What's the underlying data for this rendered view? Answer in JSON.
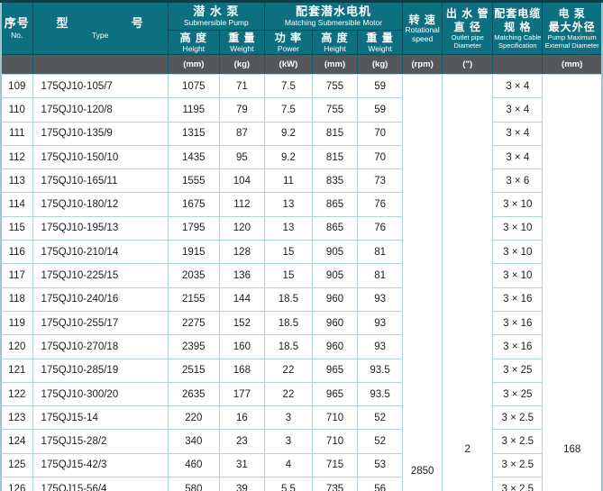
{
  "colors": {
    "header_bg": "#0d7080",
    "units_bg": "#54585b",
    "header_border": "#094c58",
    "body_border": "#b0d4d9",
    "text": "#1d1d1d"
  },
  "table": {
    "header": {
      "no": {
        "zh": "序号",
        "en": "No."
      },
      "type": {
        "zh": "型 号",
        "en": "Type"
      },
      "pump_group": {
        "zh": "潜 水 泵",
        "en": "Submersible Pump"
      },
      "motor_group": {
        "zh": "配套潜水电机",
        "en": "Matching Submersible Motor"
      },
      "pump_height": {
        "zh": "高 度",
        "en": "Height"
      },
      "pump_weight": {
        "zh": "重 量",
        "en": "Weight"
      },
      "power": {
        "zh": "功 率",
        "en": "Power"
      },
      "motor_height": {
        "zh": "高 度",
        "en": "Height"
      },
      "motor_weight": {
        "zh": "重 量",
        "en": "Weight"
      },
      "speed": {
        "zh": "转 速",
        "en": "Rotational speed"
      },
      "outlet": {
        "zh1": "出 水 管",
        "zh2": "直 径",
        "en": "Outlet pipe Diameter"
      },
      "cable": {
        "zh1": "配套电缆",
        "zh2": "规 格",
        "en": "Matching Cable Specification"
      },
      "maxdia": {
        "zh1": "电 泵",
        "zh2": "最大外径",
        "en": "Pump Maximum External Diameter"
      }
    },
    "units": {
      "pump_height": "(mm)",
      "pump_weight": "(kg)",
      "power": "(kW)",
      "motor_height": "(mm)",
      "motor_weight": "(kg)",
      "speed": "(rpm)",
      "outlet": "(\")",
      "maxdia": "(mm)"
    },
    "merged": {
      "speed": "2850",
      "outlet": "2",
      "maxdia": "168"
    },
    "rows": [
      {
        "no": "109",
        "type": "175QJ10-105/7",
        "pump_h": "1075",
        "pump_w": "71",
        "power": "7.5",
        "motor_h": "755",
        "motor_w": "59",
        "cable": "3 × 4"
      },
      {
        "no": "110",
        "type": "175QJ10-120/8",
        "pump_h": "1195",
        "pump_w": "79",
        "power": "7.5",
        "motor_h": "755",
        "motor_w": "59",
        "cable": "3 × 4"
      },
      {
        "no": "111",
        "type": "175QJ10-135/9",
        "pump_h": "1315",
        "pump_w": "87",
        "power": "9.2",
        "motor_h": "815",
        "motor_w": "70",
        "cable": "3 × 4"
      },
      {
        "no": "112",
        "type": "175QJ10-150/10",
        "pump_h": "1435",
        "pump_w": "95",
        "power": "9.2",
        "motor_h": "815",
        "motor_w": "70",
        "cable": "3 × 4"
      },
      {
        "no": "113",
        "type": "175QJ10-165/11",
        "pump_h": "1555",
        "pump_w": "104",
        "power": "11",
        "motor_h": "835",
        "motor_w": "73",
        "cable": "3 × 6"
      },
      {
        "no": "114",
        "type": "175QJ10-180/12",
        "pump_h": "1675",
        "pump_w": "112",
        "power": "13",
        "motor_h": "865",
        "motor_w": "76",
        "cable": "3 × 10"
      },
      {
        "no": "115",
        "type": "175QJ10-195/13",
        "pump_h": "1795",
        "pump_w": "120",
        "power": "13",
        "motor_h": "865",
        "motor_w": "76",
        "cable": "3 × 10"
      },
      {
        "no": "116",
        "type": "175QJ10-210/14",
        "pump_h": "1915",
        "pump_w": "128",
        "power": "15",
        "motor_h": "905",
        "motor_w": "81",
        "cable": "3 × 10"
      },
      {
        "no": "117",
        "type": "175QJ10-225/15",
        "pump_h": "2035",
        "pump_w": "136",
        "power": "15",
        "motor_h": "905",
        "motor_w": "81",
        "cable": "3 × 10"
      },
      {
        "no": "118",
        "type": "175QJ10-240/16",
        "pump_h": "2155",
        "pump_w": "144",
        "power": "18.5",
        "motor_h": "960",
        "motor_w": "93",
        "cable": "3 × 16"
      },
      {
        "no": "119",
        "type": "175QJ10-255/17",
        "pump_h": "2275",
        "pump_w": "152",
        "power": "18.5",
        "motor_h": "960",
        "motor_w": "93",
        "cable": "3 × 16"
      },
      {
        "no": "120",
        "type": "175QJ10-270/18",
        "pump_h": "2395",
        "pump_w": "160",
        "power": "18.5",
        "motor_h": "960",
        "motor_w": "93",
        "cable": "3 × 16"
      },
      {
        "no": "121",
        "type": "175QJ10-285/19",
        "pump_h": "2515",
        "pump_w": "168",
        "power": "22",
        "motor_h": "965",
        "motor_w": "93.5",
        "cable": "3 × 25"
      },
      {
        "no": "122",
        "type": "175QJ10-300/20",
        "pump_h": "2635",
        "pump_w": "177",
        "power": "22",
        "motor_h": "965",
        "motor_w": "93.5",
        "cable": "3 × 25"
      },
      {
        "no": "123",
        "type": "175QJ15-14",
        "pump_h": "220",
        "pump_w": "16",
        "power": "3",
        "motor_h": "710",
        "motor_w": "52",
        "cable": "3 × 2.5"
      },
      {
        "no": "124",
        "type": "175QJ15-28/2",
        "pump_h": "340",
        "pump_w": "23",
        "power": "3",
        "motor_h": "710",
        "motor_w": "52",
        "cable": "3 × 2.5"
      },
      {
        "no": "125",
        "type": "175QJ15-42/3",
        "pump_h": "460",
        "pump_w": "31",
        "power": "4",
        "motor_h": "715",
        "motor_w": "53",
        "cable": "3 × 2.5"
      },
      {
        "no": "126",
        "type": "175QJ15-56/4",
        "pump_h": "580",
        "pump_w": "39",
        "power": "5.5",
        "motor_h": "735",
        "motor_w": "56",
        "cable": "3 × 2.5"
      }
    ]
  }
}
